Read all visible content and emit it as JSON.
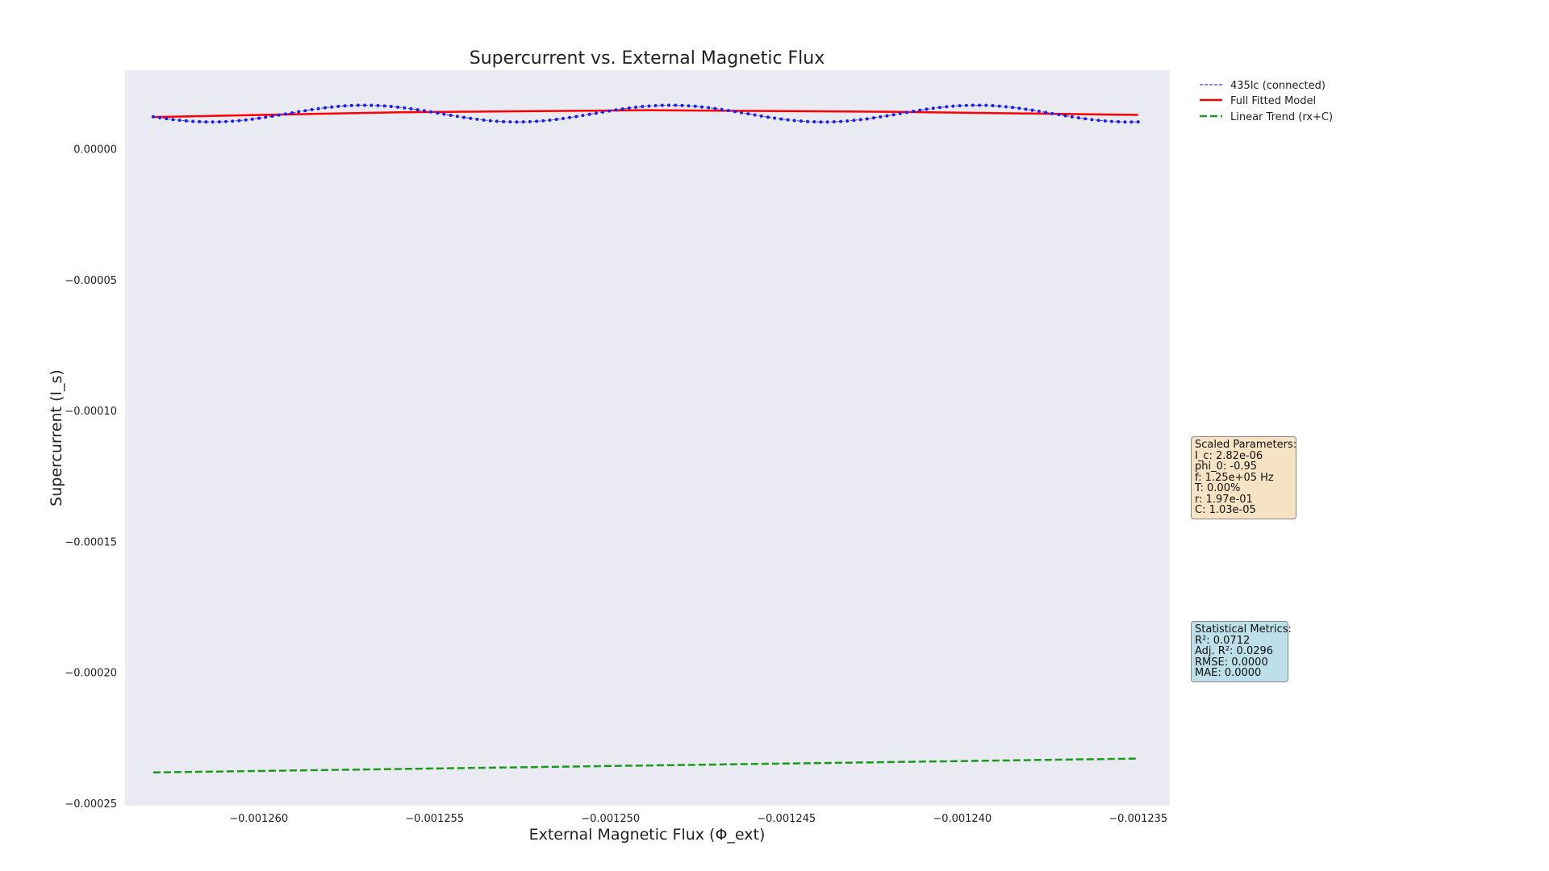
{
  "chart_data": {
    "type": "line",
    "title": "Supercurrent vs. External Magnetic Flux",
    "xlabel": "External Magnetic Flux (Φ_ext)",
    "ylabel": "Supercurrent (I_s)",
    "xlim": [
      -0.0012638,
      -0.0012341
    ],
    "ylim": [
      -0.000251,
      3.01e-05
    ],
    "x_ticks": [
      -0.00126,
      -0.001255,
      -0.00125,
      -0.001245,
      -0.00124,
      -0.001235
    ],
    "x_tick_labels": [
      "−0.001260",
      "−0.001255",
      "−0.001250",
      "−0.001245",
      "−0.001240",
      "−0.001235"
    ],
    "y_ticks": [
      0.0,
      -5e-05,
      -0.0001,
      -0.00015,
      -0.0002,
      -0.00025
    ],
    "y_tick_labels": [
      "0.00000",
      "−0.00005",
      "−0.00010",
      "−0.00015",
      "−0.00020",
      "−0.00025"
    ],
    "grid": false,
    "legend_position": "outside-top-right",
    "series": [
      {
        "name": "435lc (connected)",
        "style": "dashed-markers",
        "color": "#1f1fe6",
        "x_range": [
          -0.001263,
          -0.001235
        ],
        "points": 150,
        "model": {
          "baseline": 1.35e-05,
          "amplitude": 3.2e-06,
          "period": 8.7e-06,
          "phase_x": -0.001257
        },
        "sample_values": [
          [
            -0.001263,
            1.15e-05
          ],
          [
            -0.0012605,
            1.03e-05
          ],
          [
            -0.001257,
            1.67e-05
          ],
          [
            -0.0012535,
            1.03e-05
          ],
          [
            -0.0012485,
            1.68e-05
          ],
          [
            -0.001244,
            1.03e-05
          ],
          [
            -0.0012405,
            1.68e-05
          ],
          [
            -0.001236,
            1.06e-05
          ],
          [
            -0.001235,
            1.42e-05
          ]
        ]
      },
      {
        "name": "Full Fitted Model",
        "style": "solid",
        "color": "#ff0000",
        "x": [
          -0.001263,
          -0.001256,
          -0.001249,
          -0.001242,
          -0.001235
        ],
        "values": [
          1.22e-05,
          1.4e-05,
          1.48e-05,
          1.42e-05,
          1.3e-05
        ]
      },
      {
        "name": "Linear Trend (rx+C)",
        "style": "dashed",
        "color": "#1a9a1a",
        "x": [
          -0.001263,
          -0.001235
        ],
        "values": [
          -0.0002383,
          -0.000233
        ]
      }
    ],
    "annotations": {
      "parameters": {
        "title": "Scaled Parameters:",
        "lines": [
          "I_c: 2.82e-06",
          "phi_0: -0.95",
          "f: 1.25e+05 Hz",
          "T: 0.00%",
          "r: 1.97e-01",
          "C: 1.03e-05"
        ],
        "background": "#f5e3c4"
      },
      "metrics": {
        "title": "Statistical Metrics:",
        "lines": [
          "R²: 0.0712",
          "Adj. R²: 0.0296",
          "RMSE: 0.0000",
          "MAE: 0.0000"
        ],
        "background": "#bcdfea"
      }
    },
    "plot_background": "#eaeaf2"
  }
}
